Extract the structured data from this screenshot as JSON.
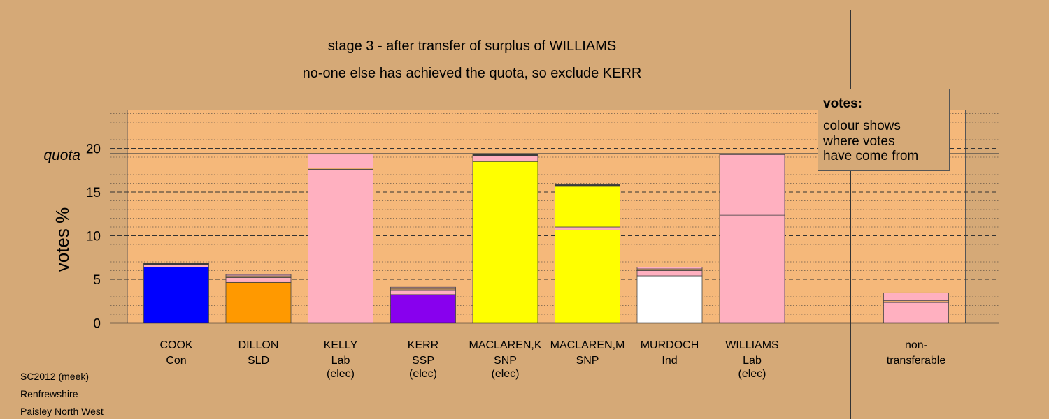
{
  "chart_data": {
    "type": "bar",
    "stacked": true,
    "title": "stage 3 - after transfer of surplus of WILLIAMS",
    "subtitle": "no-one else has achieved the quota, so exclude KERR",
    "ylabel": "votes %",
    "ylim": [
      0,
      24
    ],
    "yticks": [
      "0",
      "5",
      "10",
      "15",
      "20"
    ],
    "quota_label": "quota",
    "quota": 19.4,
    "grid": true,
    "colors": {
      "con": "#0000ff",
      "sld": "#ff9900",
      "lab": "#ffb0c0",
      "ssp": "#8800ee",
      "snp": "#ffff00",
      "ind": "#ffffff",
      "other": "#f0b070",
      "dark": "#3a3a3a"
    },
    "bars": [
      {
        "name": "COOK",
        "party": "Con",
        "elected": "",
        "segments": [
          {
            "value": 6.4,
            "from": "con"
          },
          {
            "value": 0.25,
            "from": "lab"
          },
          {
            "value": 0.2,
            "from": "dark"
          }
        ]
      },
      {
        "name": "DILLON",
        "party": "SLD",
        "elected": "",
        "segments": [
          {
            "value": 4.65,
            "from": "sld"
          },
          {
            "value": 0.55,
            "from": "lab"
          },
          {
            "value": 0.2,
            "from": "other"
          },
          {
            "value": 0.15,
            "from": "lab"
          }
        ]
      },
      {
        "name": "KELLY",
        "party": "Lab",
        "elected": "(elec)",
        "segments": [
          {
            "value": 17.6,
            "from": "lab"
          },
          {
            "value": 0.15,
            "from": "other"
          },
          {
            "value": 1.6,
            "from": "lab"
          }
        ]
      },
      {
        "name": "KERR",
        "party": "SSP",
        "elected": "(elec)",
        "segments": [
          {
            "value": 3.25,
            "from": "ssp"
          },
          {
            "value": 0.55,
            "from": "lab"
          },
          {
            "value": 0.15,
            "from": "other"
          },
          {
            "value": 0.15,
            "from": "lab"
          }
        ]
      },
      {
        "name": "MACLAREN,K",
        "party": "SNP",
        "elected": "(elec)",
        "segments": [
          {
            "value": 18.5,
            "from": "snp"
          },
          {
            "value": 0.65,
            "from": "lab"
          },
          {
            "value": 0.2,
            "from": "dark"
          }
        ]
      },
      {
        "name": "MACLAREN,M",
        "party": "SNP",
        "elected": "",
        "segments": [
          {
            "value": 10.65,
            "from": "snp"
          },
          {
            "value": 0.35,
            "from": "lab"
          },
          {
            "value": 4.65,
            "from": "snp"
          },
          {
            "value": 0.2,
            "from": "dark"
          }
        ]
      },
      {
        "name": "MURDOCH",
        "party": "Ind",
        "elected": "",
        "segments": [
          {
            "value": 5.4,
            "from": "ind"
          },
          {
            "value": 0.6,
            "from": "lab"
          },
          {
            "value": 0.2,
            "from": "other"
          },
          {
            "value": 0.2,
            "from": "lab"
          }
        ]
      },
      {
        "name": "WILLIAMS",
        "party": "Lab",
        "elected": "(elec)",
        "segments": [
          {
            "value": 12.35,
            "from": "lab"
          },
          {
            "value": 6.95,
            "from": "lab"
          },
          {
            "value": 0.1,
            "from": "dark"
          }
        ]
      },
      {
        "name": "non-",
        "party": "transferable",
        "elected": "",
        "segments": [
          {
            "value": 2.35,
            "from": "lab"
          },
          {
            "value": 0.2,
            "from": "other"
          },
          {
            "value": 0.9,
            "from": "lab"
          }
        ]
      }
    ],
    "legend": {
      "title": "votes:",
      "lines": [
        "colour shows",
        "where votes",
        "have come from"
      ],
      "placement": "top-right"
    },
    "footer": [
      "SC2012 (meek)",
      "Renfrewshire",
      "Paisley North West"
    ]
  }
}
